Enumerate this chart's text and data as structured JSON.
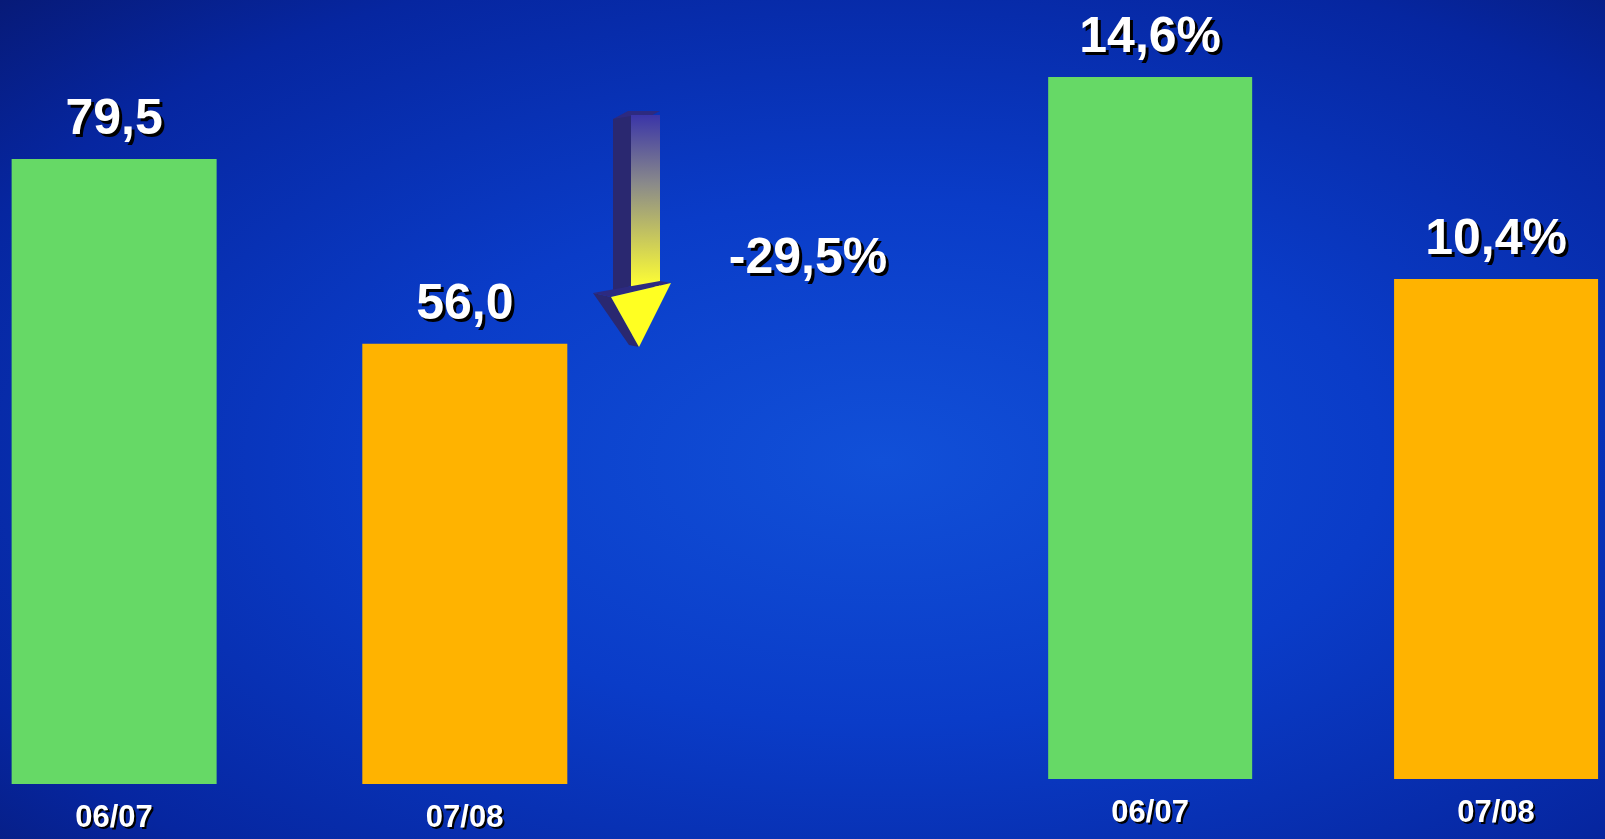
{
  "chart_data": [
    {
      "type": "bar",
      "categories": [
        "06/07",
        "07/08"
      ],
      "values": [
        79.5,
        56.0
      ],
      "colors": [
        "#66d966",
        "#ffb300"
      ],
      "value_labels": [
        "79,5",
        "56,0"
      ],
      "annotations": [
        "-29,5%"
      ],
      "tick_labels": "x"
    },
    {
      "type": "bar",
      "categories": [
        "06/07",
        "07/08"
      ],
      "values": [
        14.6,
        10.4
      ],
      "colors": [
        "#66d966",
        "#ffb300"
      ],
      "value_labels": [
        "14,6%",
        "10,4%"
      ],
      "tick_labels": "x"
    }
  ]
}
